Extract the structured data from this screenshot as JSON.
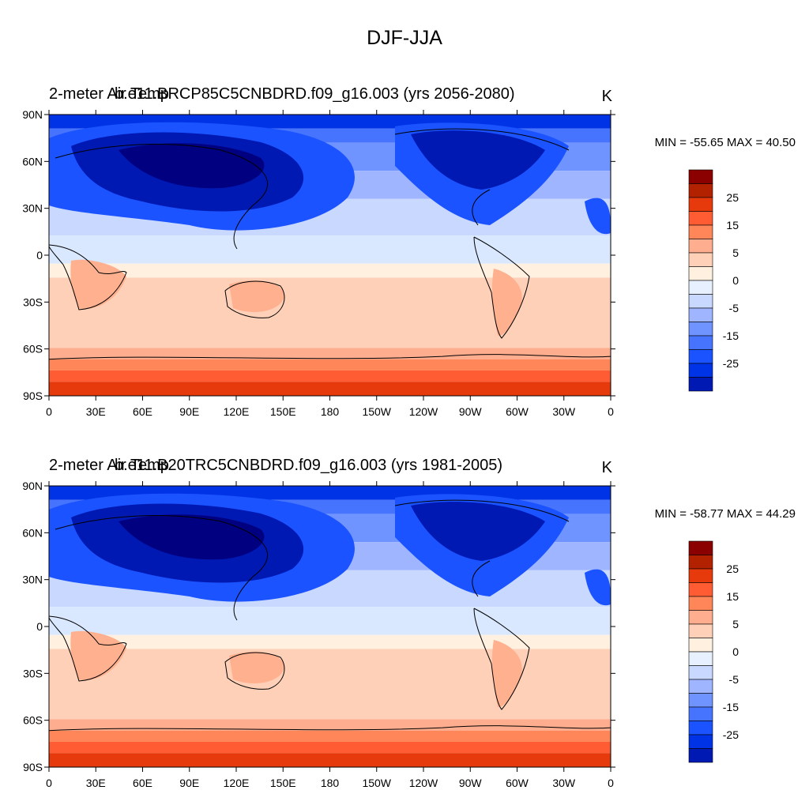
{
  "figure": {
    "title": "DJF-JJA"
  },
  "palette": {
    "levels": [
      "#000080",
      "#0019b3",
      "#0033e6",
      "#1a53ff",
      "#4774ff",
      "#7094ff",
      "#9fb5ff",
      "#c9d8ff",
      "#e6f0ff",
      "#fff0e0",
      "#ffd0b8",
      "#ffad8f",
      "#ff8659",
      "#ff5c33",
      "#e63a0d",
      "#b32200",
      "#8b0000"
    ],
    "ocean_tropics": "#d9e8ff",
    "land_warm": "#ffb08f",
    "coast": "#000000"
  },
  "panels": [
    {
      "title_left_a": "2-meter Air Temp",
      "title_left_b": "b.e11.BRCP85C5CNBDRD.f09_g16.003 (yrs 2056-2080)",
      "units": "K",
      "stats": "MIN = -55.65 MAX =  40.50"
    },
    {
      "title_left_a": "2-meter Air Temp",
      "title_left_b": "b.e11.B20TRC5CNBDRD.f09_g16.003 (yrs 1981-2005)",
      "units": "K",
      "stats": "MIN = -58.77 MAX =  44.29"
    }
  ],
  "axes": {
    "lat_labels": [
      "90N",
      "60N",
      "30N",
      "0",
      "30S",
      "60S",
      "90S"
    ],
    "lon_labels": [
      "0",
      "30E",
      "60E",
      "90E",
      "120E",
      "150E",
      "180",
      "150W",
      "120W",
      "90W",
      "60W",
      "30W",
      "0"
    ]
  },
  "colorbar": {
    "labels": [
      "25",
      "15",
      "5",
      "0",
      "-5",
      "-15",
      "-25"
    ]
  }
}
